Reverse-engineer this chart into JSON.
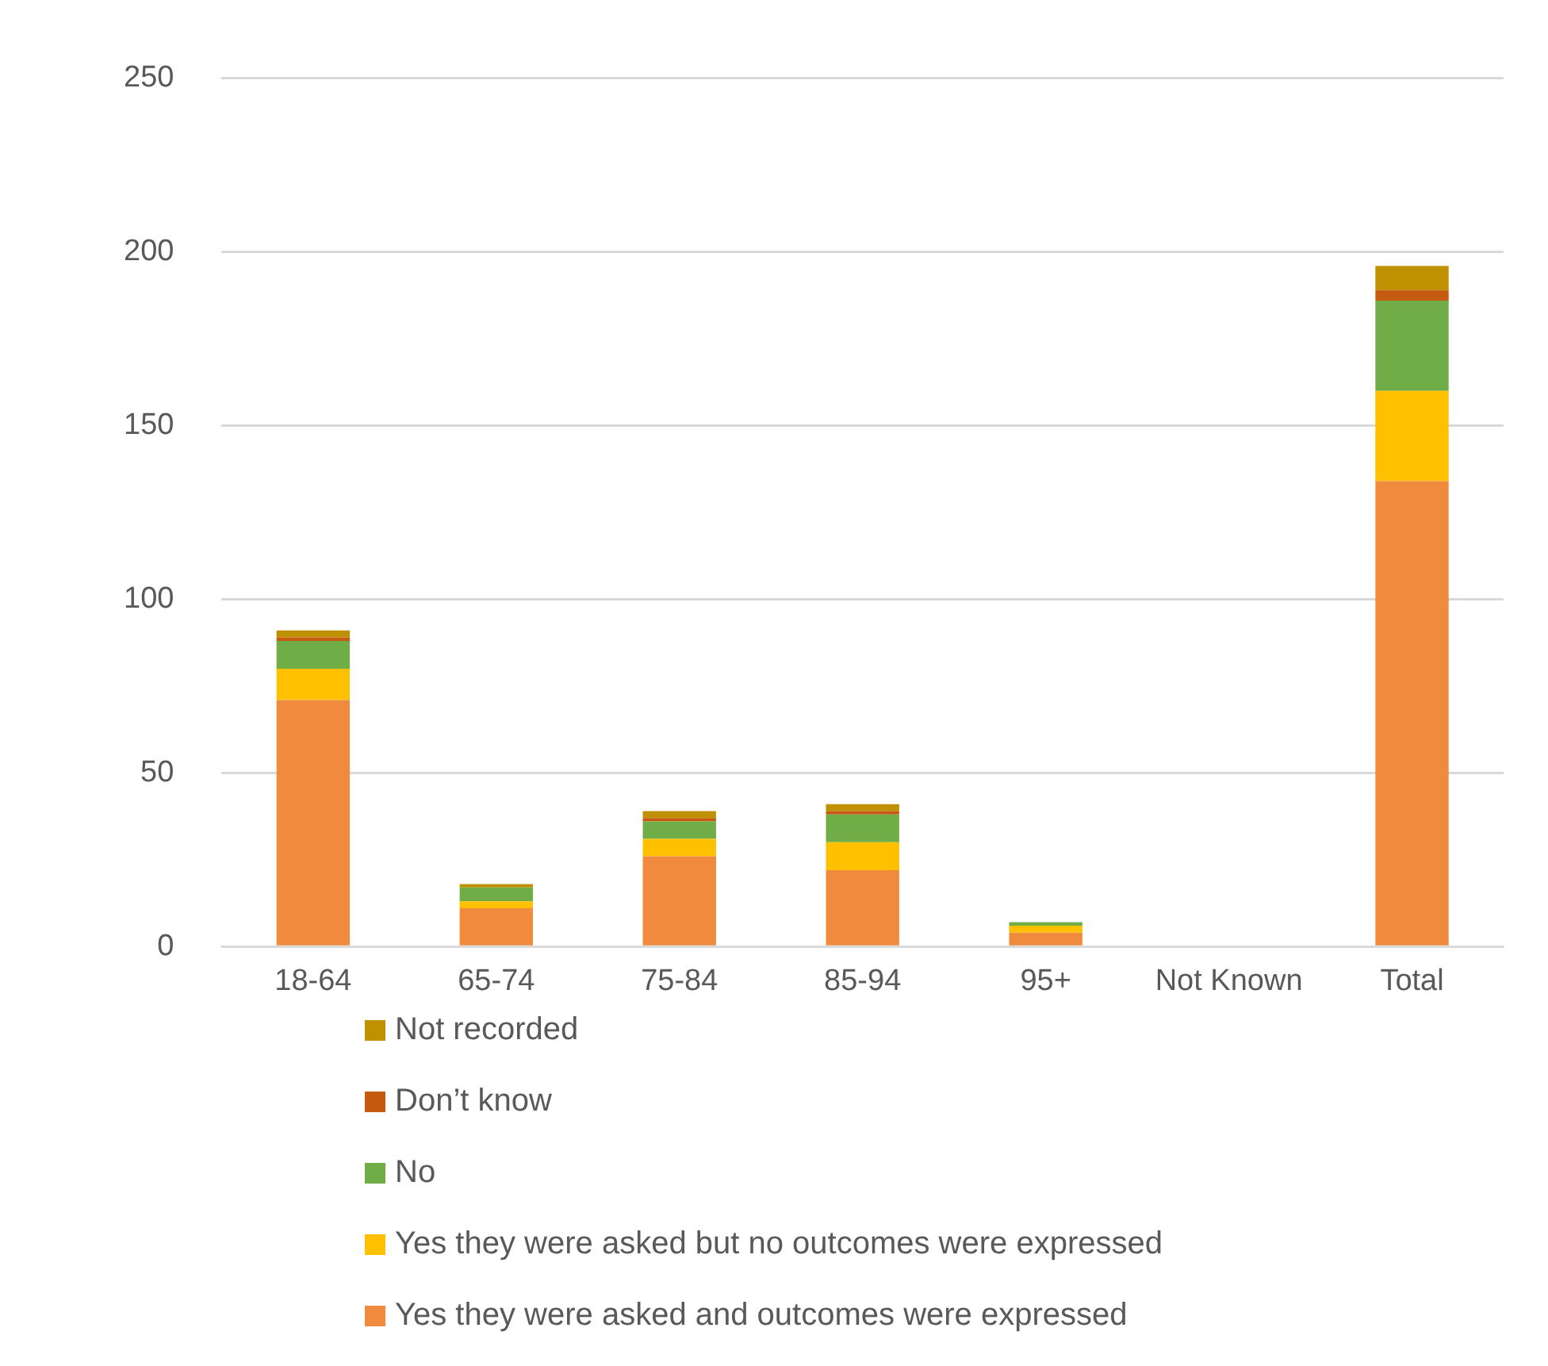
{
  "chart_data": {
    "type": "bar",
    "stacked": true,
    "categories": [
      "18-64",
      "65-74",
      "75-84",
      "85-94",
      "95+",
      "Not Known",
      "Total"
    ],
    "series": [
      {
        "name": "Yes they were asked and outcomes were expressed",
        "color": "#f08a3c",
        "values": [
          71,
          11,
          26,
          22,
          4,
          0,
          134
        ]
      },
      {
        "name": "Yes they were asked but no outcomes were expressed",
        "color": "#ffc000",
        "values": [
          9,
          2,
          5,
          8,
          2,
          0,
          26
        ]
      },
      {
        "name": "No",
        "color": "#70ad47",
        "values": [
          8,
          4,
          5,
          8,
          1,
          0,
          26
        ]
      },
      {
        "name": "Don’t know",
        "color": "#c55a11",
        "values": [
          1,
          0,
          1,
          1,
          0,
          0,
          3
        ]
      },
      {
        "name": "Not recorded",
        "color": "#bf9000",
        "values": [
          2,
          1,
          2,
          2,
          0,
          0,
          7
        ]
      }
    ],
    "ylim": [
      0,
      250
    ],
    "yticks": [
      0,
      50,
      100,
      150,
      200,
      250
    ],
    "grid": "y",
    "legend": "bottom"
  }
}
